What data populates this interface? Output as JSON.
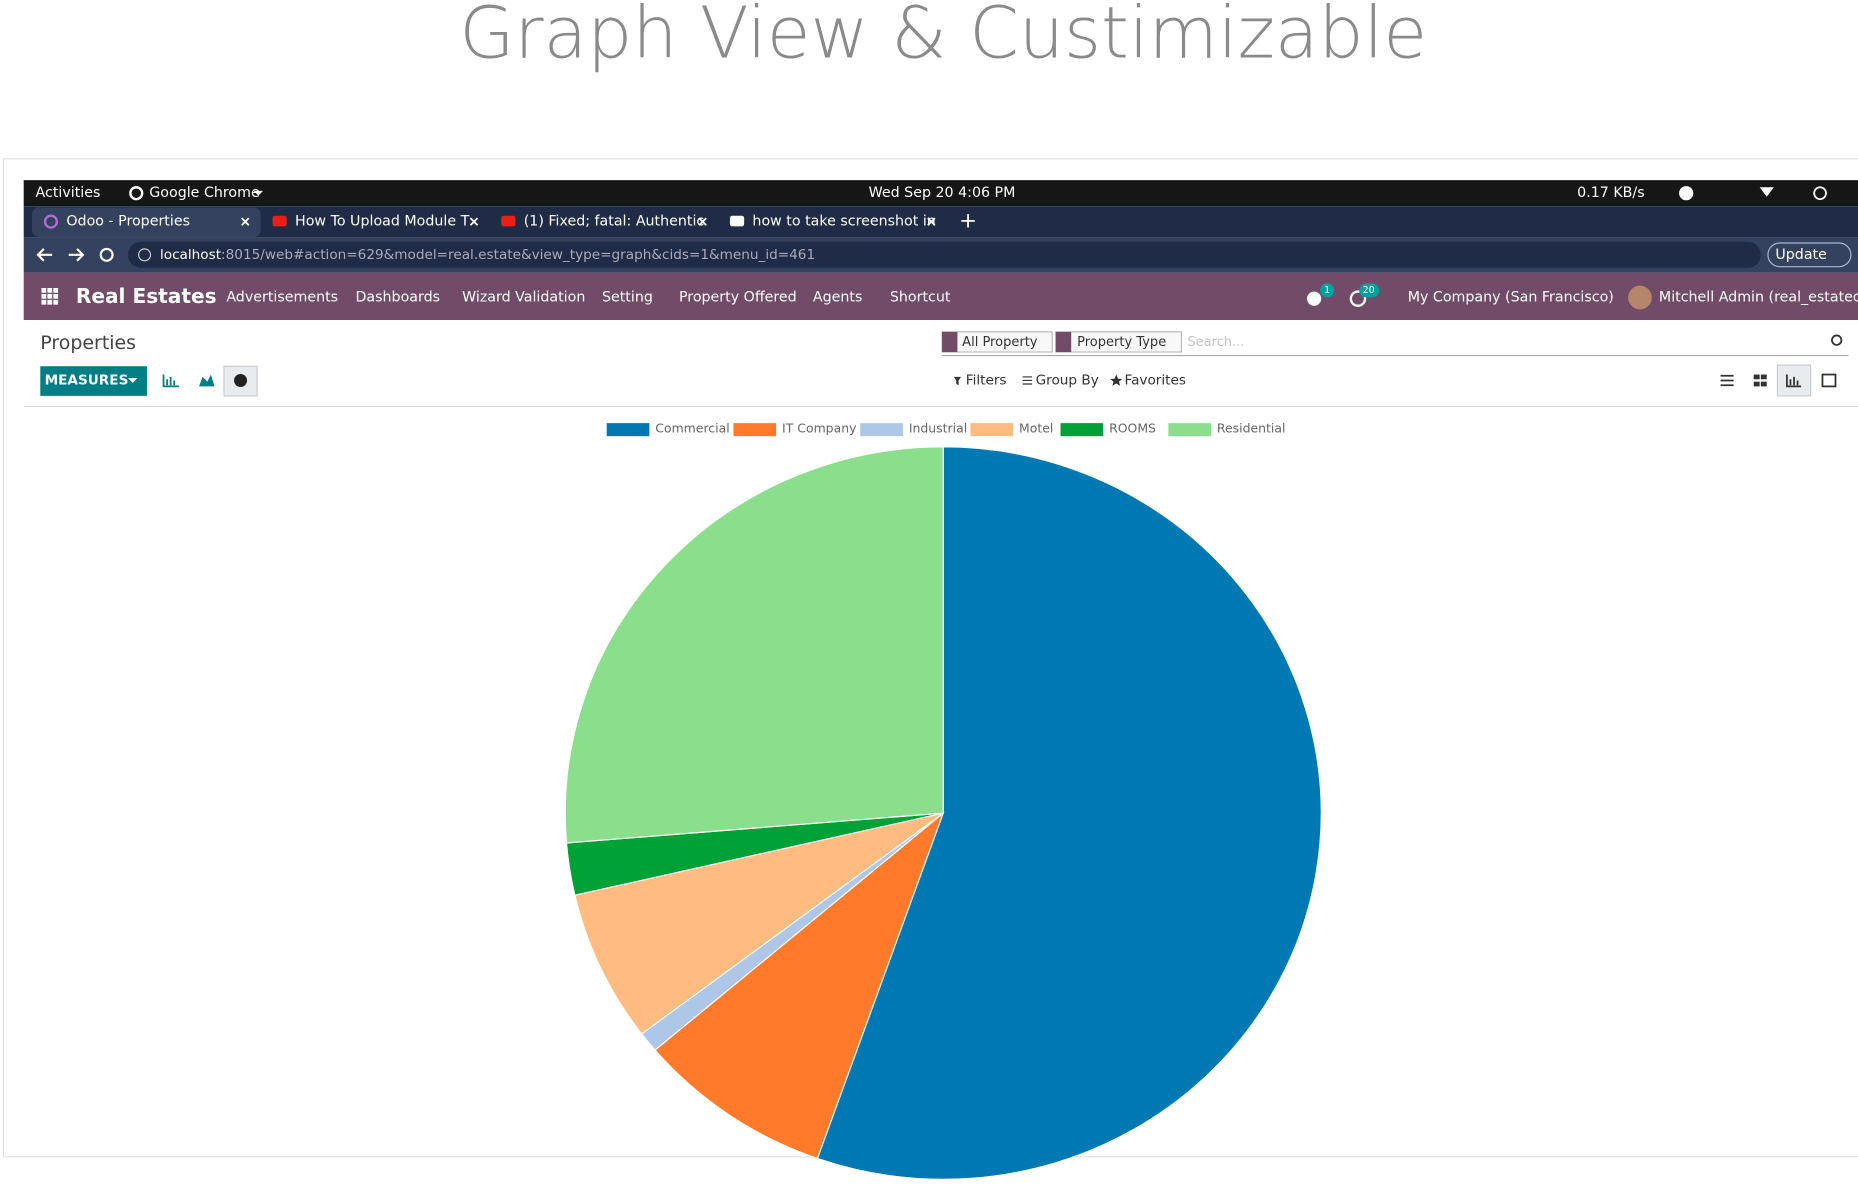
{
  "heading": "Graph View & Custimizable",
  "os_bar": {
    "activities": "Activities",
    "app": "Google Chrome",
    "clock": "Wed Sep 20  4:06 PM",
    "network": "0.17 KB/s"
  },
  "tabs": [
    "Odoo - Properties",
    "How To Upload Module T",
    "(1) Fixed; fatal: Authentic",
    "how to take screenshot in"
  ],
  "address": {
    "host": "localhost",
    "path": ":8015/web#action=629&model=real.estate&view_type=graph&cids=1&menu_id=461"
  },
  "update": "Update",
  "navbar": {
    "brand": "Real Estates",
    "menu": [
      "Advertisements",
      "Dashboards",
      "Wizard Validation",
      "Setting",
      "Property Offered",
      "Agents",
      "Shortcut"
    ],
    "badges": [
      "1",
      "20"
    ],
    "company": "My Company (San Francisco)",
    "user": "Mitchell Admin (real_estatedb)"
  },
  "control_panel": {
    "breadcrumb": "Properties",
    "measures": "MEASURES",
    "facets": [
      "All Property",
      "Property Type"
    ],
    "search_placeholder": "Search...",
    "filters": "Filters",
    "group_by": "Group By",
    "favorites": "Favorites"
  },
  "chart_data": {
    "type": "pie",
    "categories": [
      "Commercial",
      "IT Company",
      "Industrial",
      "Motel",
      "ROOMS",
      "Residential"
    ],
    "values": [
      55.4,
      8.4,
      0.9,
      6.7,
      2.3,
      26.3
    ],
    "colors": [
      "#0078b4",
      "#ff7a2a",
      "#aec7e8",
      "#ffbb80",
      "#00a136",
      "#8bdf8c"
    ],
    "legend": "top"
  }
}
